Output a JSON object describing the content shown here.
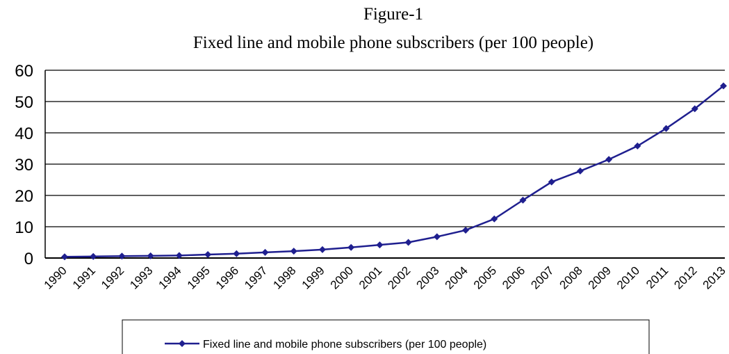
{
  "chart_data": {
    "type": "line",
    "title": "Figure-1",
    "subtitle": "Fixed line and mobile phone subscribers (per 100 people)",
    "xlabel": "",
    "ylabel": "",
    "x": [
      "1990",
      "1991",
      "1992",
      "1993",
      "1994",
      "1995",
      "1996",
      "1997",
      "1998",
      "1999",
      "2000",
      "2001",
      "2002",
      "2003",
      "2004",
      "2005",
      "2006",
      "2007",
      "2008",
      "2009",
      "2010",
      "2011",
      "2012",
      "2013"
    ],
    "yticks": [
      0,
      10,
      20,
      30,
      40,
      50,
      60
    ],
    "ylim": [
      0,
      60
    ],
    "grid": true,
    "legend_position": "bottom",
    "series": [
      {
        "name": "Fixed line and mobile phone subscribers (per 100 people)",
        "color": "#1f1f8f",
        "marker": "diamond",
        "values": [
          0.4,
          0.5,
          0.6,
          0.7,
          0.8,
          1.1,
          1.4,
          1.8,
          2.2,
          2.7,
          3.4,
          4.2,
          5.0,
          6.8,
          8.9,
          12.5,
          18.5,
          24.3,
          27.8,
          31.5,
          35.8,
          41.4,
          47.7,
          55.0
        ]
      }
    ]
  }
}
